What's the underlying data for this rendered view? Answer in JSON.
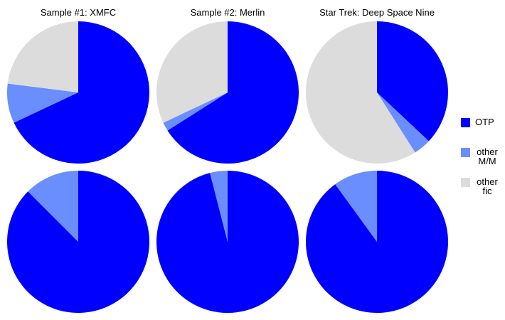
{
  "chart_data": [
    {
      "type": "pie",
      "title": "Sample #1: XMFC",
      "values": [
        68,
        9,
        23
      ]
    },
    {
      "type": "pie",
      "title": "Sample #2: Merlin",
      "values": [
        66,
        2,
        32
      ]
    },
    {
      "type": "pie",
      "title": "Star Trek: Deep Space Nine",
      "values": [
        37,
        4,
        59
      ]
    },
    {
      "type": "pie",
      "values": [
        87.5,
        12.5
      ]
    },
    {
      "type": "pie",
      "values": [
        96,
        4
      ]
    },
    {
      "type": "pie",
      "values": [
        90,
        10
      ]
    }
  ],
  "legend": {
    "labels": [
      "OTP",
      "other M/M",
      "other fic"
    ],
    "colors": [
      "#0000ff",
      "#6b8eff",
      "#dcdcdc"
    ]
  }
}
